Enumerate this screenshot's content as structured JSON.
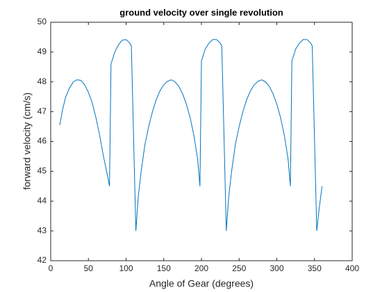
{
  "chart_data": {
    "type": "line",
    "title": "ground velocity over single revolution",
    "x_label": "Angle of Gear (degrees)",
    "y_label": "forward velocity (cm/s)",
    "xlim": [
      0,
      400
    ],
    "ylim": [
      42,
      50
    ],
    "xticks": [
      0,
      50,
      100,
      150,
      200,
      250,
      300,
      350,
      400
    ],
    "yticks": [
      42,
      43,
      44,
      45,
      46,
      47,
      48,
      49,
      50
    ],
    "grid": false,
    "x": [
      12,
      16,
      20,
      25,
      30,
      35,
      40,
      45,
      50,
      55,
      60,
      65,
      70,
      75,
      78,
      80,
      85,
      90,
      95,
      100,
      105,
      107,
      113,
      116,
      120,
      125,
      130,
      135,
      140,
      145,
      150,
      155,
      160,
      165,
      170,
      175,
      180,
      185,
      190,
      195,
      198,
      200,
      205,
      210,
      215,
      220,
      225,
      227,
      233,
      236,
      240,
      245,
      250,
      255,
      260,
      265,
      270,
      275,
      280,
      285,
      290,
      295,
      300,
      305,
      310,
      315,
      318,
      320,
      325,
      330,
      335,
      340,
      345,
      347,
      353,
      356,
      360
    ],
    "series": [
      {
        "name": "velocity",
        "color": "#0072bd",
        "values": [
          46.55,
          47.1,
          47.5,
          47.8,
          48.0,
          48.07,
          48.05,
          47.9,
          47.65,
          47.3,
          46.8,
          46.2,
          45.5,
          44.9,
          44.5,
          48.6,
          49.0,
          49.25,
          49.4,
          49.42,
          49.3,
          49.2,
          43.0,
          44.1,
          45.0,
          45.9,
          46.5,
          47.0,
          47.4,
          47.7,
          47.9,
          48.02,
          48.07,
          48.0,
          47.85,
          47.6,
          47.25,
          46.8,
          46.2,
          45.4,
          44.5,
          48.7,
          49.1,
          49.3,
          49.42,
          49.42,
          49.3,
          49.2,
          43.0,
          44.1,
          45.0,
          45.9,
          46.5,
          47.0,
          47.4,
          47.7,
          47.9,
          48.02,
          48.07,
          48.0,
          47.85,
          47.6,
          47.25,
          46.8,
          46.2,
          45.4,
          44.5,
          48.7,
          49.1,
          49.3,
          49.42,
          49.42,
          49.3,
          49.2,
          43.0,
          43.7,
          44.5
        ]
      }
    ]
  }
}
